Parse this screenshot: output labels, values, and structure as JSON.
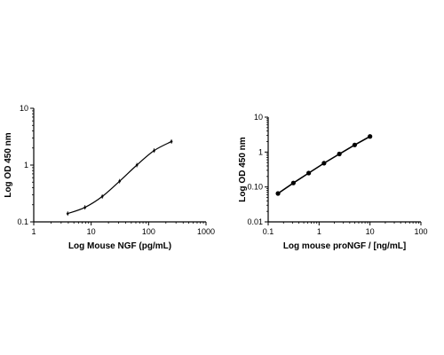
{
  "chart_data": [
    {
      "type": "line",
      "title": "",
      "xlabel": "Log Mouse NGF (pg/mL)",
      "ylabel": "Log OD 450 nm",
      "x_scale": "log",
      "y_scale": "log",
      "xlim": [
        1,
        1000
      ],
      "ylim": [
        0.1,
        10
      ],
      "x_ticks": [
        1,
        10,
        100,
        1000
      ],
      "x_tick_labels": [
        "1",
        "10",
        "100",
        "1000"
      ],
      "y_ticks": [
        0.1,
        1,
        10
      ],
      "y_tick_labels": [
        "0.1",
        "1",
        "10"
      ],
      "series": [
        {
          "x": [
            3.9,
            7.8,
            15.6,
            31.25,
            62.5,
            125,
            250
          ],
          "y": [
            0.14,
            0.18,
            0.28,
            0.52,
            1.0,
            1.8,
            2.6
          ]
        }
      ],
      "grid": false,
      "legend": "none",
      "color": "#000000"
    },
    {
      "type": "line",
      "title": "",
      "xlabel": "Log mouse proNGF / [ng/mL]",
      "ylabel": "Log OD 450 nm",
      "x_scale": "log",
      "y_scale": "log",
      "xlim": [
        0.1,
        100
      ],
      "ylim": [
        0.01,
        10
      ],
      "x_ticks": [
        0.1,
        1,
        10,
        100
      ],
      "x_tick_labels": [
        "0.1",
        "1",
        "10",
        "100"
      ],
      "y_ticks": [
        0.01,
        0.1,
        1,
        10
      ],
      "y_tick_labels": [
        "0.01",
        "0.10",
        "1",
        "10"
      ],
      "series": [
        {
          "x": [
            0.156,
            0.3125,
            0.625,
            1.25,
            2.5,
            5,
            10
          ],
          "y": [
            0.065,
            0.13,
            0.25,
            0.48,
            0.88,
            1.6,
            2.8
          ]
        }
      ],
      "grid": false,
      "legend": "none",
      "color": "#000000"
    }
  ]
}
